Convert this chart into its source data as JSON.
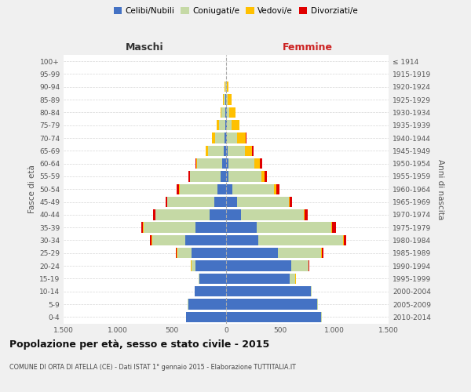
{
  "age_groups": [
    "0-4",
    "5-9",
    "10-14",
    "15-19",
    "20-24",
    "25-29",
    "30-34",
    "35-39",
    "40-44",
    "45-49",
    "50-54",
    "55-59",
    "60-64",
    "65-69",
    "70-74",
    "75-79",
    "80-84",
    "85-89",
    "90-94",
    "95-99",
    "100+"
  ],
  "birth_years": [
    "2010-2014",
    "2005-2009",
    "2000-2004",
    "1995-1999",
    "1990-1994",
    "1985-1989",
    "1980-1984",
    "1975-1979",
    "1970-1974",
    "1965-1969",
    "1960-1964",
    "1955-1959",
    "1950-1954",
    "1945-1949",
    "1940-1944",
    "1935-1939",
    "1930-1934",
    "1925-1929",
    "1920-1924",
    "1915-1919",
    "≤ 1914"
  ],
  "male_celibi": [
    370,
    350,
    290,
    250,
    280,
    320,
    380,
    280,
    150,
    110,
    80,
    50,
    35,
    20,
    12,
    8,
    5,
    4,
    2,
    0,
    0
  ],
  "male_coniugati": [
    2,
    2,
    2,
    5,
    40,
    130,
    300,
    480,
    500,
    430,
    350,
    280,
    230,
    150,
    90,
    60,
    35,
    20,
    8,
    0,
    0
  ],
  "male_vedovi": [
    0,
    0,
    0,
    2,
    3,
    5,
    5,
    5,
    2,
    3,
    5,
    5,
    12,
    15,
    25,
    18,
    12,
    8,
    2,
    0,
    0
  ],
  "male_divorziati": [
    0,
    0,
    0,
    0,
    3,
    8,
    15,
    20,
    20,
    15,
    20,
    15,
    8,
    5,
    3,
    2,
    0,
    0,
    0,
    0,
    0
  ],
  "female_celibi": [
    880,
    840,
    780,
    590,
    600,
    480,
    300,
    280,
    140,
    100,
    55,
    25,
    20,
    12,
    10,
    8,
    5,
    3,
    2,
    0,
    0
  ],
  "female_coniugati": [
    5,
    5,
    10,
    50,
    160,
    400,
    780,
    690,
    580,
    480,
    390,
    300,
    240,
    160,
    90,
    45,
    25,
    10,
    5,
    0,
    0
  ],
  "female_vedovi": [
    0,
    0,
    0,
    2,
    3,
    5,
    5,
    10,
    8,
    10,
    20,
    30,
    55,
    70,
    80,
    70,
    55,
    40,
    15,
    2,
    0
  ],
  "female_divorziati": [
    0,
    0,
    0,
    0,
    5,
    15,
    25,
    35,
    25,
    20,
    25,
    20,
    15,
    8,
    5,
    3,
    0,
    0,
    0,
    0,
    0
  ],
  "color_celibi": "#4472c4",
  "color_coniugati": "#c5d9a5",
  "color_vedovi": "#ffc000",
  "color_divorziati": "#e00000",
  "xlim": 1500,
  "title": "Popolazione per età, sesso e stato civile - 2015",
  "subtitle": "COMUNE DI ORTA DI ATELLA (CE) - Dati ISTAT 1° gennaio 2015 - Elaborazione TUTTITALIA.IT",
  "ylabel_left": "Fasce di età",
  "ylabel_right": "Anni di nascita",
  "xlabel_left": "Maschi",
  "xlabel_right": "Femmine",
  "bg_color": "#f0f0f0",
  "plot_bg": "#ffffff"
}
